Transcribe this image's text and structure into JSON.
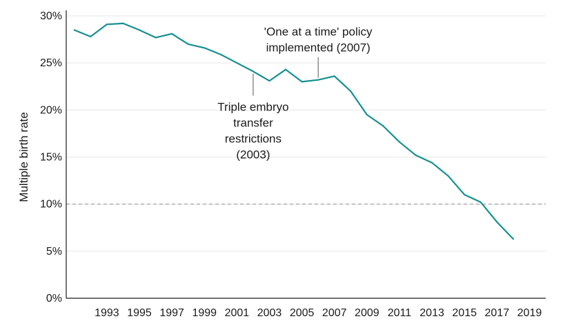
{
  "chart_data": {
    "type": "line",
    "title": "",
    "xlabel": "",
    "ylabel": "Multiple birth rate",
    "x": [
      1991,
      1992,
      1993,
      1994,
      1995,
      1996,
      1997,
      1998,
      1999,
      2000,
      2001,
      2002,
      2003,
      2004,
      2005,
      2006,
      2007,
      2008,
      2009,
      2010,
      2011,
      2012,
      2013,
      2014,
      2015,
      2016,
      2017,
      2018
    ],
    "series": [
      {
        "values": [
          28.5,
          27.8,
          29.1,
          29.2,
          28.5,
          27.7,
          28.1,
          27.0,
          26.6,
          25.9,
          25.0,
          24.1,
          23.1,
          24.3,
          23.0,
          23.2,
          23.6,
          22.0,
          19.5,
          18.3,
          16.6,
          15.2,
          14.4,
          13.0,
          11.0,
          10.2,
          8.1,
          6.3
        ],
        "color": "#148f8f"
      }
    ],
    "xlim": [
      1990.5,
      2020
    ],
    "ylim": [
      0,
      30
    ],
    "x_ticks": [
      "1993",
      "1995",
      "1997",
      "1999",
      "2001",
      "2003",
      "2005",
      "2007",
      "2009",
      "2011",
      "2013",
      "2015",
      "2017",
      "2019"
    ],
    "y_ticks": [
      "0%",
      "5%",
      "10%",
      "15%",
      "20%",
      "25%",
      "30%"
    ],
    "grid": "horizontal",
    "reference_line": {
      "y": 10,
      "style": "dashed",
      "color": "#999999"
    },
    "annotations": [
      {
        "lines": [
          "Triple embryo",
          "transfer",
          "restrictions",
          "(2003)"
        ],
        "x": 2002,
        "placement": "below"
      },
      {
        "lines": [
          "'One at a time' policy",
          "implemented (2007)"
        ],
        "x": 2006,
        "placement": "above"
      }
    ]
  }
}
